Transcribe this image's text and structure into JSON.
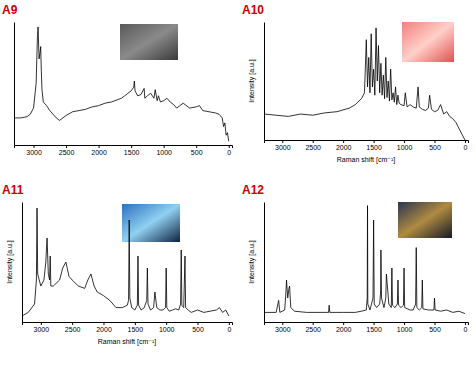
{
  "chart_data": [
    {
      "type": "line",
      "title": "A9",
      "color": "#000000",
      "xlim": [
        3300,
        -50
      ],
      "xticks": [
        3000,
        2500,
        2000,
        1500,
        1000,
        500,
        0
      ],
      "ylim": [
        0,
        100
      ],
      "tick_labels": "x",
      "x": [
        3300,
        3200,
        3100,
        3050,
        3000,
        2960,
        2940,
        2930,
        2915,
        2900,
        2890,
        2880,
        2870,
        2850,
        2800,
        2750,
        2700,
        2650,
        2600,
        2500,
        2400,
        2300,
        2200,
        2100,
        2000,
        1900,
        1800,
        1700,
        1650,
        1600,
        1550,
        1500,
        1460,
        1450,
        1440,
        1400,
        1350,
        1300,
        1290,
        1250,
        1200,
        1150,
        1130,
        1100,
        1080,
        1050,
        1000,
        950,
        900,
        850,
        800,
        750,
        700,
        600,
        500,
        450,
        400,
        300,
        200,
        150,
        100,
        80,
        60,
        40,
        20,
        0
      ],
      "values": [
        22,
        22,
        23,
        25,
        30,
        50,
        88,
        96,
        70,
        75,
        80,
        60,
        45,
        35,
        32,
        28,
        25,
        22,
        20,
        24,
        27,
        28,
        29,
        31,
        32,
        34,
        35,
        37,
        38,
        40,
        42,
        44,
        47,
        52,
        44,
        40,
        41,
        46,
        38,
        40,
        42,
        38,
        45,
        36,
        40,
        35,
        36,
        38,
        35,
        33,
        30,
        32,
        34,
        30,
        31,
        32,
        28,
        27,
        26,
        25,
        22,
        15,
        18,
        8,
        10,
        3
      ]
    },
    {
      "type": "line",
      "title": "A10",
      "color": "#000000",
      "x_label": "Raman shift [cm⁻¹]",
      "y_label": "Intensity [a.u.]",
      "xlim": [
        3300,
        -50
      ],
      "xticks": [
        3000,
        2500,
        2000,
        1500,
        1000,
        500,
        0
      ],
      "ylim": [
        0,
        100
      ],
      "tick_labels": "x",
      "x": [
        3300,
        3100,
        2900,
        2700,
        2500,
        2300,
        2100,
        1900,
        1800,
        1700,
        1650,
        1620,
        1600,
        1580,
        1560,
        1540,
        1520,
        1500,
        1480,
        1460,
        1440,
        1420,
        1400,
        1380,
        1360,
        1340,
        1320,
        1300,
        1280,
        1260,
        1240,
        1220,
        1200,
        1180,
        1160,
        1140,
        1120,
        1100,
        1080,
        1050,
        1000,
        980,
        950,
        900,
        850,
        800,
        770,
        750,
        700,
        650,
        600,
        580,
        550,
        500,
        450,
        400,
        350,
        300,
        250,
        200,
        150,
        100,
        50,
        0
      ],
      "values": [
        22,
        21,
        20,
        22,
        21,
        23,
        24,
        27,
        30,
        35,
        40,
        85,
        45,
        70,
        40,
        90,
        45,
        60,
        38,
        95,
        50,
        80,
        40,
        65,
        38,
        55,
        35,
        70,
        36,
        50,
        33,
        60,
        34,
        40,
        32,
        45,
        30,
        38,
        31,
        30,
        29,
        40,
        28,
        30,
        28,
        27,
        45,
        28,
        26,
        25,
        27,
        38,
        26,
        24,
        25,
        30,
        22,
        24,
        20,
        18,
        15,
        10,
        5,
        0
      ]
    },
    {
      "type": "line",
      "title": "A11",
      "color": "#000000",
      "x_label": "Raman shift [cm⁻¹]",
      "y_label": "Intensity [a.u.]",
      "xlim": [
        3300,
        -50
      ],
      "xticks": [
        3000,
        2500,
        2000,
        1500,
        1000,
        500,
        0
      ],
      "ylim": [
        0,
        100
      ],
      "tick_labels": "x",
      "x": [
        3300,
        3200,
        3100,
        3070,
        3060,
        3050,
        3000,
        2950,
        2920,
        2900,
        2880,
        2860,
        2850,
        2840,
        2800,
        2700,
        2650,
        2600,
        2550,
        2500,
        2400,
        2300,
        2250,
        2200,
        2150,
        2100,
        2000,
        1900,
        1800,
        1700,
        1620,
        1600,
        1590,
        1580,
        1550,
        1500,
        1460,
        1450,
        1440,
        1400,
        1350,
        1310,
        1300,
        1290,
        1250,
        1200,
        1180,
        1150,
        1100,
        1050,
        1010,
        1000,
        990,
        950,
        900,
        850,
        800,
        770,
        760,
        750,
        720,
        700,
        690,
        650,
        600,
        500,
        400,
        300,
        200,
        150,
        100,
        50,
        0
      ],
      "values": [
        5,
        8,
        15,
        35,
        95,
        40,
        30,
        35,
        50,
        70,
        40,
        35,
        55,
        30,
        30,
        35,
        45,
        50,
        38,
        35,
        30,
        28,
        35,
        40,
        30,
        25,
        22,
        18,
        12,
        12,
        14,
        18,
        85,
        20,
        12,
        10,
        14,
        55,
        14,
        10,
        12,
        18,
        45,
        15,
        10,
        12,
        25,
        12,
        10,
        10,
        12,
        45,
        12,
        9,
        10,
        11,
        10,
        15,
        60,
        14,
        12,
        55,
        12,
        10,
        8,
        10,
        8,
        9,
        10,
        12,
        8,
        10,
        5
      ]
    },
    {
      "type": "line",
      "title": "A12",
      "color": "#000000",
      "y_label": "Intensity [a.u.]",
      "xlim": [
        3300,
        -50
      ],
      "xticks": [
        3000,
        2500,
        2000,
        1500,
        1000,
        500,
        0
      ],
      "ylim": [
        0,
        100
      ],
      "tick_labels": "x",
      "x": [
        3300,
        3100,
        3060,
        3040,
        2960,
        2940,
        2930,
        2910,
        2890,
        2880,
        2860,
        2800,
        2600,
        2300,
        2240,
        2230,
        2220,
        2000,
        1800,
        1700,
        1620,
        1605,
        1600,
        1595,
        1560,
        1510,
        1500,
        1490,
        1450,
        1400,
        1385,
        1380,
        1370,
        1330,
        1300,
        1290,
        1250,
        1210,
        1200,
        1190,
        1150,
        1110,
        1100,
        1090,
        1050,
        1010,
        1000,
        990,
        900,
        850,
        810,
        800,
        790,
        750,
        710,
        700,
        690,
        600,
        510,
        500,
        490,
        400,
        300,
        200,
        100,
        0
      ],
      "values": [
        8,
        8,
        18,
        8,
        10,
        25,
        35,
        20,
        28,
        30,
        12,
        9,
        8,
        8,
        8,
        14,
        8,
        8,
        8,
        9,
        10,
        20,
        97,
        15,
        10,
        20,
        85,
        15,
        12,
        15,
        25,
        60,
        20,
        12,
        20,
        40,
        15,
        12,
        45,
        14,
        12,
        15,
        35,
        14,
        12,
        14,
        45,
        12,
        10,
        10,
        15,
        62,
        12,
        10,
        12,
        35,
        11,
        10,
        10,
        20,
        10,
        9,
        10,
        8,
        9,
        7
      ]
    }
  ]
}
